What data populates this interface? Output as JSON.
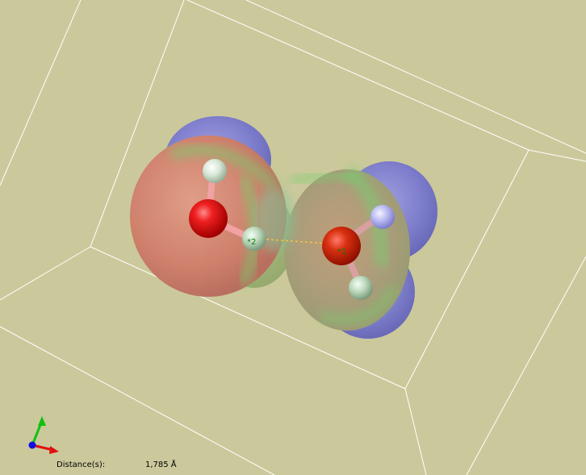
{
  "viewer": {
    "background_color": "#cbc99b",
    "molecule": {
      "atom_labels": {
        "h_bond_donor": "*2",
        "h_bond_acceptor": "*1"
      },
      "colors": {
        "oxygen": "#e01010",
        "hydrogen": "#e2ece2",
        "hydrogen_blue": "#c9c9ff",
        "bond": "#f0a0a0",
        "hbond": "#f5c040",
        "surface_negative": "#d05a50",
        "surface_neutral": "#5fd060",
        "surface_positive": "#6a6aca"
      }
    },
    "axes_triad": {
      "x_color": "#e01010",
      "y_color": "#10c010",
      "z_color": "#1010e0"
    }
  },
  "measurement": {
    "label": "Distance(s):",
    "value": "1,785 Å"
  }
}
